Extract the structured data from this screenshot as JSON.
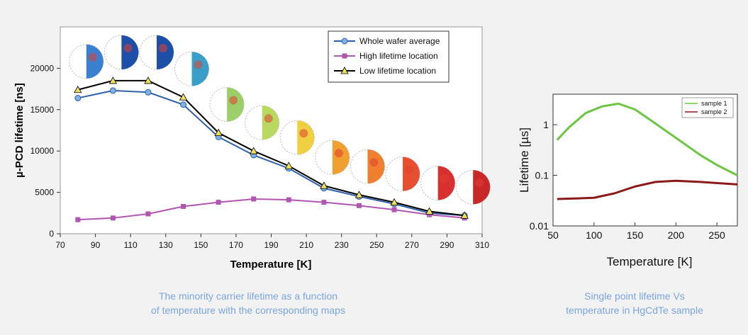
{
  "charts": [
    {
      "type": "line",
      "title": "",
      "xlabel": "Temperature [K]",
      "ylabel": "µ-PCD lifetime [ns]",
      "xlim": [
        70,
        310
      ],
      "ylim": [
        0,
        25000
      ],
      "xticks": [
        70,
        90,
        110,
        130,
        150,
        170,
        190,
        210,
        230,
        250,
        270,
        290,
        310
      ],
      "xtick_labels": [
        "70",
        "90",
        "110",
        "130",
        "150",
        "170",
        "190",
        "210",
        "230",
        "250",
        "270",
        "290",
        "310"
      ],
      "yticks": [
        0,
        5000,
        10000,
        15000,
        20000
      ],
      "ytick_labels": [
        "0",
        "5000",
        "10000",
        "15000",
        "20000"
      ],
      "grid": false,
      "legend": "top-right",
      "x": [
        80,
        100,
        120,
        140,
        160,
        180,
        200,
        220,
        240,
        260,
        280,
        300
      ],
      "series": [
        {
          "name": "Whole wafer average",
          "color": "#2e5faa",
          "marker": "circle",
          "marker_color": "#7fb2e0",
          "values": [
            16400,
            17300,
            17100,
            15600,
            11700,
            9500,
            7900,
            5500,
            4500,
            3600,
            2500,
            2200
          ]
        },
        {
          "name": "High lifetime location",
          "color": "#b055b0",
          "marker": "square",
          "marker_color": "#b055b0",
          "values": [
            1700,
            1900,
            2400,
            3300,
            3800,
            4200,
            4100,
            3800,
            3400,
            2900,
            2300,
            1900
          ]
        },
        {
          "name": "Low lifetime location",
          "color": "#000000",
          "marker": "triangle",
          "marker_color": "#f0e060",
          "values": [
            17400,
            18500,
            18500,
            16500,
            12200,
            10000,
            8200,
            5800,
            4700,
            3800,
            2700,
            2200
          ]
        }
      ],
      "maps": [
        {
          "temp": 80,
          "color": "#3a7fd0"
        },
        {
          "temp": 100,
          "color": "#1e4fa8"
        },
        {
          "temp": 120,
          "color": "#1e4fa8"
        },
        {
          "temp": 140,
          "color": "#3a9fc8"
        },
        {
          "temp": 160,
          "color": "#9ccf6a"
        },
        {
          "temp": 180,
          "color": "#b8d860"
        },
        {
          "temp": 200,
          "color": "#f0d040"
        },
        {
          "temp": 220,
          "color": "#f0a030"
        },
        {
          "temp": 240,
          "color": "#ee8030"
        },
        {
          "temp": 260,
          "color": "#e65030"
        },
        {
          "temp": 280,
          "color": "#d83030"
        },
        {
          "temp": 300,
          "color": "#c82828"
        }
      ]
    },
    {
      "type": "line",
      "title": "",
      "xlabel": "Temperature [K]",
      "ylabel": "Lifetime [µs]",
      "xlim": [
        50,
        275
      ],
      "ylim": [
        0.01,
        4
      ],
      "yscale": "log",
      "xticks": [
        50,
        100,
        150,
        200,
        250
      ],
      "xtick_labels": [
        "50",
        "100",
        "150",
        "200",
        "250"
      ],
      "yticks": [
        0.01,
        0.1,
        1
      ],
      "ytick_labels": [
        "0.01",
        "0.1",
        "1"
      ],
      "grid": false,
      "legend": "top-right",
      "series": [
        {
          "name": "sample 1",
          "color": "#6cc644",
          "x": [
            55,
            70,
            90,
            110,
            130,
            150,
            170,
            200,
            230,
            250,
            275
          ],
          "values": [
            0.5,
            0.9,
            1.7,
            2.3,
            2.6,
            2.0,
            1.2,
            0.55,
            0.25,
            0.16,
            0.1
          ]
        },
        {
          "name": "sample 2",
          "color": "#8b1a1a",
          "x": [
            55,
            80,
            100,
            125,
            150,
            175,
            200,
            230,
            275
          ],
          "values": [
            0.034,
            0.035,
            0.036,
            0.044,
            0.06,
            0.074,
            0.078,
            0.074,
            0.066
          ]
        }
      ]
    }
  ],
  "captions": {
    "left_line1": "The minority carrier lifetime as a function",
    "left_line2": "of temperature with the corresponding maps",
    "right_line1": "Single point lifetime Vs",
    "right_line2": "temperature in HgCdTe sample"
  }
}
